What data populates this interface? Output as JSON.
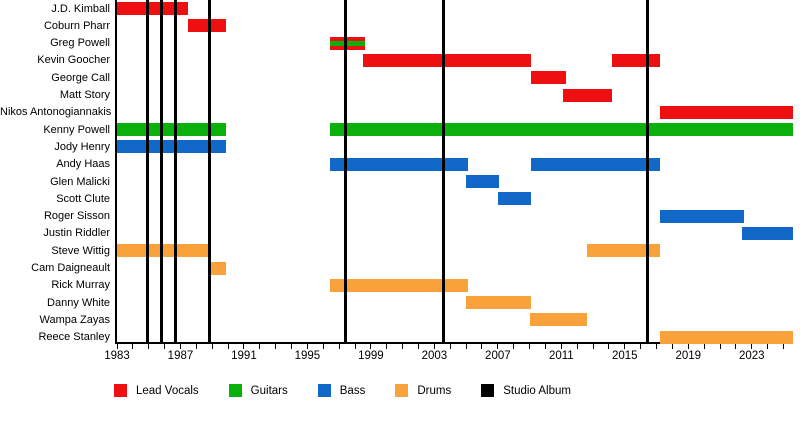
{
  "chart_data": {
    "type": "gantt-timeline",
    "description": "Band members timeline with roles as colored horizontal bars and studio album releases as vertical black lines",
    "x_axis": {
      "min": 1983,
      "max": 2025.6,
      "minor_tick_interval_years": 1,
      "labeled_ticks": [
        1983,
        1987,
        1991,
        1995,
        1999,
        2003,
        2007,
        2011,
        2015,
        2019,
        2023
      ]
    },
    "legend": [
      {
        "label": "Lead Vocals",
        "color": "#ee1010"
      },
      {
        "label": "Guitars",
        "color": "#0cb00c"
      },
      {
        "label": "Bass",
        "color": "#1168c8"
      },
      {
        "label": "Drums",
        "color": "#f9a23c"
      },
      {
        "label": "Studio Album",
        "color": "#000000"
      }
    ],
    "members": [
      {
        "name": "J.D. Kimball",
        "role": "Lead Vocals",
        "bars": [
          {
            "start": 1983,
            "end": 1987.5,
            "color": "#ee1010"
          }
        ]
      },
      {
        "name": "Coburn Pharr",
        "role": "Lead Vocals",
        "bars": [
          {
            "start": 1987.5,
            "end": 1989.9,
            "color": "#ee1010"
          }
        ]
      },
      {
        "name": "Greg Powell",
        "role": "Lead Vocals, Guitars",
        "bars": [
          {
            "start": 1996.4,
            "end": 1998.6,
            "color": "#ee1010",
            "stripe": "#0cb00c"
          }
        ]
      },
      {
        "name": "Kevin Goocher",
        "role": "Lead Vocals",
        "bars": [
          {
            "start": 1998.5,
            "end": 2009.1,
            "color": "#ee1010"
          },
          {
            "start": 2014.2,
            "end": 2017.2,
            "color": "#ee1010"
          }
        ]
      },
      {
        "name": "George Call",
        "role": "Lead Vocals",
        "bars": [
          {
            "start": 2009.1,
            "end": 2011.3,
            "color": "#ee1010"
          }
        ]
      },
      {
        "name": "Matt Story",
        "role": "Lead Vocals",
        "bars": [
          {
            "start": 2011.1,
            "end": 2014.2,
            "color": "#ee1010"
          }
        ]
      },
      {
        "name": "Nikos Antonogiannakis",
        "role": "Lead Vocals",
        "bars": [
          {
            "start": 2017.2,
            "end": 2025.6,
            "color": "#ee1010"
          }
        ]
      },
      {
        "name": "Kenny Powell",
        "role": "Guitars",
        "bars": [
          {
            "start": 1983,
            "end": 1989.9,
            "color": "#0cb00c"
          },
          {
            "start": 1996.4,
            "end": 2025.6,
            "color": "#0cb00c"
          }
        ]
      },
      {
        "name": "Jody Henry",
        "role": "Bass",
        "bars": [
          {
            "start": 1983,
            "end": 1989.9,
            "color": "#1168c8"
          }
        ]
      },
      {
        "name": "Andy Haas",
        "role": "Bass",
        "bars": [
          {
            "start": 1996.4,
            "end": 2005.1,
            "color": "#1168c8"
          },
          {
            "start": 2009.1,
            "end": 2017.2,
            "color": "#1168c8"
          }
        ]
      },
      {
        "name": "Glen Malicki",
        "role": "Bass",
        "bars": [
          {
            "start": 2005.0,
            "end": 2007.1,
            "color": "#1168c8"
          }
        ]
      },
      {
        "name": "Scott Clute",
        "role": "Bass",
        "bars": [
          {
            "start": 2007.0,
            "end": 2009.1,
            "color": "#1168c8"
          }
        ]
      },
      {
        "name": "Roger Sisson",
        "role": "Bass",
        "bars": [
          {
            "start": 2017.2,
            "end": 2022.5,
            "color": "#1168c8"
          }
        ]
      },
      {
        "name": "Justin Riddler",
        "role": "Bass",
        "bars": [
          {
            "start": 2022.4,
            "end": 2025.6,
            "color": "#1168c8"
          }
        ]
      },
      {
        "name": "Steve Wittig",
        "role": "Drums",
        "bars": [
          {
            "start": 1983,
            "end": 1988.8,
            "color": "#f9a23c"
          },
          {
            "start": 2012.6,
            "end": 2017.2,
            "color": "#f9a23c"
          }
        ]
      },
      {
        "name": "Cam Daigneault",
        "role": "Drums",
        "bars": [
          {
            "start": 1988.8,
            "end": 1989.9,
            "color": "#f9a23c"
          }
        ]
      },
      {
        "name": "Rick Murray",
        "role": "Drums",
        "bars": [
          {
            "start": 1996.4,
            "end": 2005.1,
            "color": "#f9a23c"
          }
        ]
      },
      {
        "name": "Danny White",
        "role": "Drums",
        "bars": [
          {
            "start": 2005.0,
            "end": 2009.1,
            "color": "#f9a23c"
          }
        ]
      },
      {
        "name": "Wampa Zayas",
        "role": "Drums",
        "bars": [
          {
            "start": 2009.0,
            "end": 2012.6,
            "color": "#f9a23c"
          }
        ]
      },
      {
        "name": "Reece Stanley",
        "role": "Drums",
        "bars": [
          {
            "start": 2017.2,
            "end": 2025.6,
            "color": "#f9a23c"
          }
        ]
      }
    ],
    "album_lines": [
      1984.9,
      1985.8,
      1986.7,
      1988.8,
      1997.4,
      2003.6,
      2016.4
    ]
  }
}
